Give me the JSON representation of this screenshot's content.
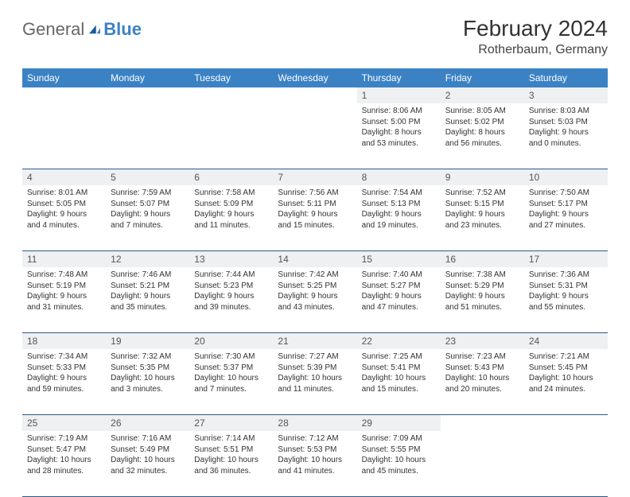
{
  "brand": {
    "part1": "General",
    "part2": "Blue"
  },
  "title": "February 2024",
  "location": "Rotherbaum, Germany",
  "colors": {
    "header_bg": "#3b82c4",
    "header_text": "#ffffff",
    "daynum_bg": "#eef0f2",
    "row_divider": "#2c5a88",
    "text": "#333333"
  },
  "day_headers": [
    "Sunday",
    "Monday",
    "Tuesday",
    "Wednesday",
    "Thursday",
    "Friday",
    "Saturday"
  ],
  "weeks": [
    {
      "nums": [
        "",
        "",
        "",
        "",
        "1",
        "2",
        "3"
      ],
      "cells": [
        null,
        null,
        null,
        null,
        {
          "sunrise": "8:06 AM",
          "sunset": "5:00 PM",
          "daylight": "8 hours and 53 minutes."
        },
        {
          "sunrise": "8:05 AM",
          "sunset": "5:02 PM",
          "daylight": "8 hours and 56 minutes."
        },
        {
          "sunrise": "8:03 AM",
          "sunset": "5:03 PM",
          "daylight": "9 hours and 0 minutes."
        }
      ]
    },
    {
      "nums": [
        "4",
        "5",
        "6",
        "7",
        "8",
        "9",
        "10"
      ],
      "cells": [
        {
          "sunrise": "8:01 AM",
          "sunset": "5:05 PM",
          "daylight": "9 hours and 4 minutes."
        },
        {
          "sunrise": "7:59 AM",
          "sunset": "5:07 PM",
          "daylight": "9 hours and 7 minutes."
        },
        {
          "sunrise": "7:58 AM",
          "sunset": "5:09 PM",
          "daylight": "9 hours and 11 minutes."
        },
        {
          "sunrise": "7:56 AM",
          "sunset": "5:11 PM",
          "daylight": "9 hours and 15 minutes."
        },
        {
          "sunrise": "7:54 AM",
          "sunset": "5:13 PM",
          "daylight": "9 hours and 19 minutes."
        },
        {
          "sunrise": "7:52 AM",
          "sunset": "5:15 PM",
          "daylight": "9 hours and 23 minutes."
        },
        {
          "sunrise": "7:50 AM",
          "sunset": "5:17 PM",
          "daylight": "9 hours and 27 minutes."
        }
      ]
    },
    {
      "nums": [
        "11",
        "12",
        "13",
        "14",
        "15",
        "16",
        "17"
      ],
      "cells": [
        {
          "sunrise": "7:48 AM",
          "sunset": "5:19 PM",
          "daylight": "9 hours and 31 minutes."
        },
        {
          "sunrise": "7:46 AM",
          "sunset": "5:21 PM",
          "daylight": "9 hours and 35 minutes."
        },
        {
          "sunrise": "7:44 AM",
          "sunset": "5:23 PM",
          "daylight": "9 hours and 39 minutes."
        },
        {
          "sunrise": "7:42 AM",
          "sunset": "5:25 PM",
          "daylight": "9 hours and 43 minutes."
        },
        {
          "sunrise": "7:40 AM",
          "sunset": "5:27 PM",
          "daylight": "9 hours and 47 minutes."
        },
        {
          "sunrise": "7:38 AM",
          "sunset": "5:29 PM",
          "daylight": "9 hours and 51 minutes."
        },
        {
          "sunrise": "7:36 AM",
          "sunset": "5:31 PM",
          "daylight": "9 hours and 55 minutes."
        }
      ]
    },
    {
      "nums": [
        "18",
        "19",
        "20",
        "21",
        "22",
        "23",
        "24"
      ],
      "cells": [
        {
          "sunrise": "7:34 AM",
          "sunset": "5:33 PM",
          "daylight": "9 hours and 59 minutes."
        },
        {
          "sunrise": "7:32 AM",
          "sunset": "5:35 PM",
          "daylight": "10 hours and 3 minutes."
        },
        {
          "sunrise": "7:30 AM",
          "sunset": "5:37 PM",
          "daylight": "10 hours and 7 minutes."
        },
        {
          "sunrise": "7:27 AM",
          "sunset": "5:39 PM",
          "daylight": "10 hours and 11 minutes."
        },
        {
          "sunrise": "7:25 AM",
          "sunset": "5:41 PM",
          "daylight": "10 hours and 15 minutes."
        },
        {
          "sunrise": "7:23 AM",
          "sunset": "5:43 PM",
          "daylight": "10 hours and 20 minutes."
        },
        {
          "sunrise": "7:21 AM",
          "sunset": "5:45 PM",
          "daylight": "10 hours and 24 minutes."
        }
      ]
    },
    {
      "nums": [
        "25",
        "26",
        "27",
        "28",
        "29",
        "",
        ""
      ],
      "cells": [
        {
          "sunrise": "7:19 AM",
          "sunset": "5:47 PM",
          "daylight": "10 hours and 28 minutes."
        },
        {
          "sunrise": "7:16 AM",
          "sunset": "5:49 PM",
          "daylight": "10 hours and 32 minutes."
        },
        {
          "sunrise": "7:14 AM",
          "sunset": "5:51 PM",
          "daylight": "10 hours and 36 minutes."
        },
        {
          "sunrise": "7:12 AM",
          "sunset": "5:53 PM",
          "daylight": "10 hours and 41 minutes."
        },
        {
          "sunrise": "7:09 AM",
          "sunset": "5:55 PM",
          "daylight": "10 hours and 45 minutes."
        },
        null,
        null
      ]
    }
  ],
  "labels": {
    "sunrise": "Sunrise:",
    "sunset": "Sunset:",
    "daylight": "Daylight:"
  }
}
